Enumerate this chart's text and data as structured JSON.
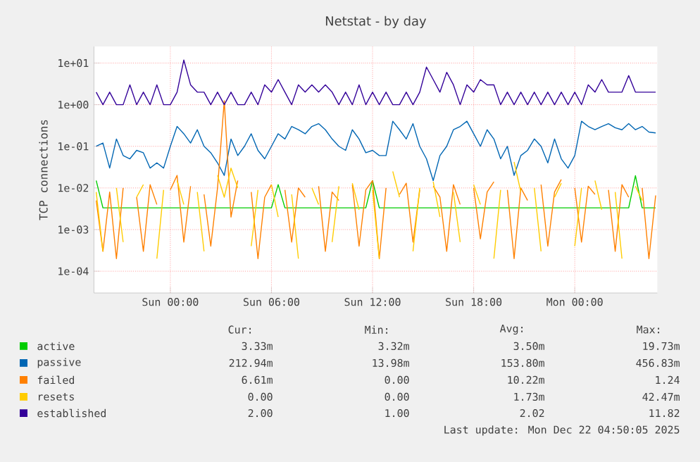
{
  "chart_data": {
    "type": "line",
    "title": "Netstat - by day",
    "ylabel": "TCP connections",
    "log": "y",
    "grid": true,
    "legend": "bottom left",
    "xlim": [
      "2025-12-20T19:28",
      "2025-12-22T04:54"
    ],
    "ylim": [
      3e-05,
      25
    ],
    "xticks": [
      {
        "value": "2025-12-21T00:00",
        "label": "Sun 00:00"
      },
      {
        "value": "2025-12-21T06:00",
        "label": "Sun 06:00"
      },
      {
        "value": "2025-12-21T12:00",
        "label": "Sun 12:00"
      },
      {
        "value": "2025-12-21T18:00",
        "label": "Sun 18:00"
      },
      {
        "value": "2025-12-22T00:00",
        "label": "Mon 00:00"
      }
    ],
    "yticks": [
      {
        "value": 0.0001,
        "label": "1e-04"
      },
      {
        "value": 0.001,
        "label": "1e-03"
      },
      {
        "value": 0.01,
        "label": "1e-02"
      },
      {
        "value": 0.1,
        "label": "1e-01"
      },
      {
        "value": 1,
        "label": "1e+00"
      },
      {
        "value": 10,
        "label": "1e+01"
      }
    ],
    "x": [
      "2025-12-20T19:36",
      "2025-12-20T20:00",
      "2025-12-20T20:24",
      "2025-12-20T20:48",
      "2025-12-20T21:12",
      "2025-12-20T21:36",
      "2025-12-20T22:00",
      "2025-12-20T22:24",
      "2025-12-20T22:48",
      "2025-12-20T23:12",
      "2025-12-20T23:36",
      "2025-12-21T00:00",
      "2025-12-21T00:24",
      "2025-12-21T00:48",
      "2025-12-21T01:12",
      "2025-12-21T01:36",
      "2025-12-21T02:00",
      "2025-12-21T02:24",
      "2025-12-21T02:48",
      "2025-12-21T03:12",
      "2025-12-21T03:36",
      "2025-12-21T04:00",
      "2025-12-21T04:24",
      "2025-12-21T04:48",
      "2025-12-21T05:12",
      "2025-12-21T05:36",
      "2025-12-21T06:00",
      "2025-12-21T06:24",
      "2025-12-21T06:48",
      "2025-12-21T07:12",
      "2025-12-21T07:36",
      "2025-12-21T08:00",
      "2025-12-21T08:24",
      "2025-12-21T08:48",
      "2025-12-21T09:12",
      "2025-12-21T09:36",
      "2025-12-21T10:00",
      "2025-12-21T10:24",
      "2025-12-21T10:48",
      "2025-12-21T11:12",
      "2025-12-21T11:36",
      "2025-12-21T12:00",
      "2025-12-21T12:24",
      "2025-12-21T12:48",
      "2025-12-21T13:12",
      "2025-12-21T13:36",
      "2025-12-21T14:00",
      "2025-12-21T14:24",
      "2025-12-21T14:48",
      "2025-12-21T15:12",
      "2025-12-21T15:36",
      "2025-12-21T16:00",
      "2025-12-21T16:24",
      "2025-12-21T16:48",
      "2025-12-21T17:12",
      "2025-12-21T17:36",
      "2025-12-21T18:00",
      "2025-12-21T18:24",
      "2025-12-21T18:48",
      "2025-12-21T19:12",
      "2025-12-21T19:36",
      "2025-12-21T20:00",
      "2025-12-21T20:24",
      "2025-12-21T20:48",
      "2025-12-21T21:12",
      "2025-12-21T21:36",
      "2025-12-21T22:00",
      "2025-12-21T22:24",
      "2025-12-21T22:48",
      "2025-12-21T23:12",
      "2025-12-21T23:36",
      "2025-12-22T00:00",
      "2025-12-22T00:24",
      "2025-12-22T00:48",
      "2025-12-22T01:12",
      "2025-12-22T01:36",
      "2025-12-22T02:00",
      "2025-12-22T02:24",
      "2025-12-22T02:48",
      "2025-12-22T03:12",
      "2025-12-22T03:36",
      "2025-12-22T04:00",
      "2025-12-22T04:24",
      "2025-12-22T04:48"
    ],
    "series": [
      {
        "name": "active",
        "color": "#00cc00",
        "values": [
          0.015,
          0.00333,
          0.00333,
          0.00333,
          0.00333,
          0.00333,
          0.00333,
          0.00333,
          0.00333,
          0.00333,
          0.00333,
          0.00333,
          0.00333,
          0.00333,
          0.00333,
          0.00333,
          0.00333,
          0.00333,
          0.00333,
          0.00333,
          0.00333,
          0.00333,
          0.00333,
          0.00333,
          0.00333,
          0.00333,
          0.00333,
          0.012,
          0.00333,
          0.00333,
          0.00333,
          0.00333,
          0.00333,
          0.00333,
          0.00333,
          0.00333,
          0.00333,
          0.00333,
          0.00333,
          0.00333,
          0.00333,
          0.015,
          0.00333,
          0.00333,
          0.00333,
          0.00333,
          0.00333,
          0.00333,
          0.00333,
          0.00333,
          0.00333,
          0.00333,
          0.00333,
          0.00333,
          0.00333,
          0.00333,
          0.00333,
          0.00333,
          0.00333,
          0.00333,
          0.00333,
          0.00333,
          0.00333,
          0.00333,
          0.00333,
          0.00333,
          0.00333,
          0.00333,
          0.00333,
          0.00333,
          0.00333,
          0.00333,
          0.00333,
          0.00333,
          0.00333,
          0.00333,
          0.00333,
          0.00333,
          0.00333,
          0.00333,
          0.0197,
          0.00333,
          0.00333,
          0.00333
        ]
      },
      {
        "name": "passive",
        "color": "#0066b3",
        "values": [
          0.1,
          0.12,
          0.03,
          0.15,
          0.06,
          0.05,
          0.08,
          0.07,
          0.03,
          0.04,
          0.03,
          0.1,
          0.3,
          0.2,
          0.12,
          0.25,
          0.1,
          0.07,
          0.04,
          0.02,
          0.15,
          0.06,
          0.1,
          0.2,
          0.08,
          0.05,
          0.1,
          0.2,
          0.15,
          0.3,
          0.25,
          0.2,
          0.3,
          0.35,
          0.25,
          0.15,
          0.1,
          0.08,
          0.25,
          0.15,
          0.07,
          0.08,
          0.06,
          0.06,
          0.4,
          0.25,
          0.15,
          0.35,
          0.1,
          0.05,
          0.015,
          0.06,
          0.1,
          0.25,
          0.3,
          0.4,
          0.2,
          0.1,
          0.25,
          0.15,
          0.05,
          0.1,
          0.02,
          0.06,
          0.08,
          0.15,
          0.1,
          0.04,
          0.15,
          0.05,
          0.03,
          0.06,
          0.4,
          0.3,
          0.25,
          0.3,
          0.35,
          0.28,
          0.25,
          0.35,
          0.25,
          0.3,
          0.22,
          0.21
        ]
      },
      {
        "name": "failed",
        "color": "#ff8000",
        "values": [
          0.005,
          0.0003,
          0.008,
          0.0002,
          0.01,
          null,
          0.006,
          0.0003,
          0.012,
          0.004,
          null,
          0.009,
          0.02,
          0.0005,
          0.011,
          null,
          0.007,
          0.0004,
          0.01,
          1.24,
          0.002,
          0.015,
          null,
          0.008,
          0.0002,
          0.006,
          0.012,
          null,
          0.009,
          0.0005,
          0.01,
          0.006,
          null,
          0.011,
          0.0003,
          0.008,
          0.005,
          null,
          0.012,
          0.0004,
          0.009,
          0.015,
          0.0002,
          0.01,
          null,
          0.007,
          0.013,
          0.0005,
          0.009,
          null,
          0.011,
          0.006,
          0.0003,
          0.012,
          0.004,
          null,
          0.01,
          0.0006,
          0.008,
          0.014,
          null,
          0.009,
          0.0002,
          0.01,
          0.005,
          null,
          0.012,
          0.0004,
          0.008,
          0.016,
          null,
          0.01,
          0.0005,
          0.011,
          0.007,
          null,
          0.009,
          0.0003,
          0.012,
          0.006,
          null,
          0.01,
          0.0002,
          0.0066
        ]
      },
      {
        "name": "resets",
        "color": "#ffcc00",
        "values": [
          0.008,
          0.0003,
          null,
          0.01,
          0.0005,
          null,
          0.006,
          0.012,
          null,
          0.0002,
          0.009,
          null,
          0.015,
          0.004,
          null,
          0.008,
          0.0003,
          null,
          0.02,
          0.006,
          0.03,
          0.01,
          null,
          0.0004,
          0.009,
          null,
          0.012,
          0.002,
          null,
          0.007,
          0.0002,
          null,
          0.01,
          0.004,
          null,
          0.0005,
          0.011,
          null,
          0.013,
          0.003,
          null,
          0.009,
          0.0002,
          null,
          0.025,
          0.006,
          null,
          0.0003,
          0.01,
          null,
          0.014,
          0.002,
          null,
          0.008,
          0.0005,
          null,
          0.012,
          0.004,
          null,
          0.0002,
          0.009,
          null,
          0.042,
          0.008,
          null,
          0.01,
          0.0003,
          null,
          0.006,
          0.013,
          null,
          0.0004,
          0.01,
          null,
          0.015,
          0.003,
          null,
          0.008,
          0.0002,
          null,
          0.011,
          0.005,
          null,
          null
        ]
      },
      {
        "name": "established",
        "color": "#330099",
        "values": [
          2,
          1,
          2,
          1,
          1,
          3,
          1,
          2,
          1,
          3,
          1,
          1,
          2,
          11.82,
          3,
          2,
          2,
          1,
          2,
          1,
          2,
          1,
          1,
          2,
          1,
          3,
          2,
          4,
          2,
          1,
          3,
          2,
          3,
          2,
          3,
          2,
          1,
          2,
          1,
          3,
          1,
          2,
          1,
          2,
          1,
          1,
          2,
          1,
          2,
          8,
          4,
          2,
          6,
          3,
          1,
          3,
          2,
          4,
          3,
          3,
          1,
          2,
          1,
          2,
          1,
          2,
          1,
          2,
          1,
          2,
          1,
          2,
          1,
          3,
          2,
          4,
          2,
          2,
          2,
          5,
          2,
          2,
          2,
          2
        ]
      }
    ],
    "annotations": [
      "Cur:",
      "Min:",
      "Avg:",
      "Max:",
      "3.33m",
      "3.32m",
      "3.50m",
      "19.73m",
      "212.94m",
      "13.98m",
      "153.80m",
      "456.83m",
      "6.61m",
      "0.00",
      "10.22m",
      "1.24",
      "0.00",
      "0.00",
      "1.73m",
      "42.47m",
      "2.00",
      "1.00",
      "2.02",
      "11.82",
      "Last update: Mon Dec 22 04:50:05 2025"
    ]
  }
}
